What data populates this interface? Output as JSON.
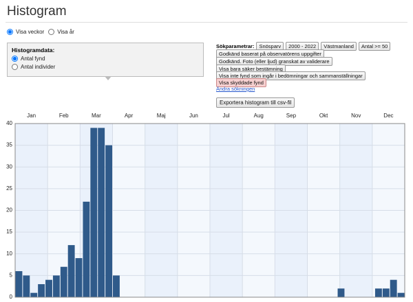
{
  "header": {
    "title": "Histogram"
  },
  "view_options": [
    "Visa veckor",
    "Visa år"
  ],
  "panel": {
    "title": "Histogramdata:",
    "options": [
      "Antal fynd",
      "Antal individer"
    ]
  },
  "search": {
    "label": "Sökparametrar:",
    "filters": [
      "Snösparv",
      "2000 - 2022",
      "Västmanland",
      "Antal >= 50",
      "Godkänd baserat på observatörens uppgifter",
      "Godkänd. Foto (eller ljud) granskat av validerare",
      "Visa bara säker bestämning",
      "Visa inte fynd som ingår i bedömningar och sammanställningar",
      "Visa skyddade fynd"
    ],
    "change_link": "Ändra sökningen"
  },
  "export_button": "Exportera histogram till csv-fil",
  "chart_data": {
    "type": "bar",
    "color": "#2f5a8a",
    "grid": true,
    "months": [
      "Jan",
      "Feb",
      "Mar",
      "Apr",
      "Maj",
      "Jun",
      "Jul",
      "Aug",
      "Sep",
      "Okt",
      "Nov",
      "Dec"
    ],
    "categories": [
      null,
      null,
      null,
      null,
      null,
      null,
      null,
      null,
      null,
      null,
      null,
      null,
      null,
      null,
      null,
      null,
      null,
      null,
      null,
      null,
      null,
      null,
      null,
      null,
      null,
      null,
      null,
      null,
      null,
      null,
      null,
      null,
      null,
      null,
      null,
      null,
      null,
      null,
      null,
      null,
      null,
      null,
      null,
      null,
      null,
      null,
      null,
      null,
      null,
      null,
      null,
      null
    ],
    "values": [
      6,
      5,
      1,
      3,
      4,
      5,
      7,
      12,
      9,
      22,
      39,
      39,
      35,
      5,
      0,
      0,
      0,
      0,
      0,
      0,
      0,
      0,
      0,
      0,
      0,
      0,
      0,
      0,
      0,
      0,
      0,
      0,
      0,
      0,
      0,
      0,
      0,
      0,
      0,
      0,
      0,
      0,
      0,
      2,
      0,
      0,
      0,
      0,
      2,
      2,
      4,
      1
    ],
    "ylim": [
      0,
      40
    ],
    "yticks": [
      0,
      5,
      10,
      15,
      20,
      25,
      30,
      35,
      40
    ]
  }
}
